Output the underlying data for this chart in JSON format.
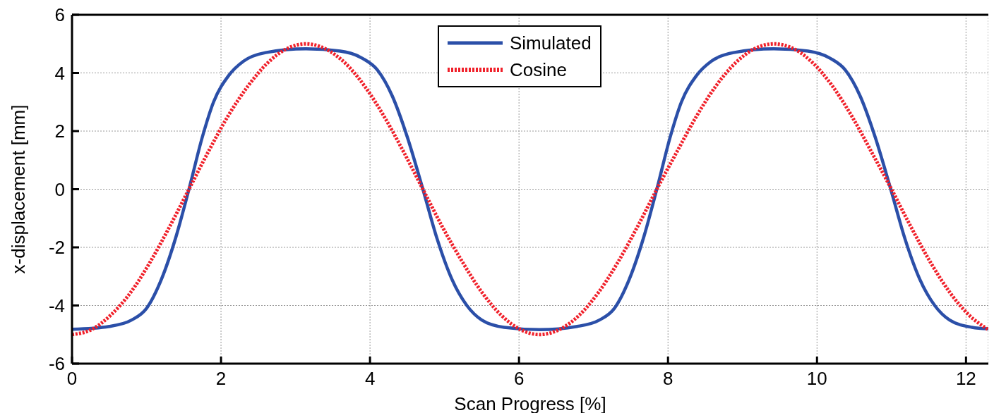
{
  "chart_data": {
    "type": "line",
    "xlabel": "Scan Progress [%]",
    "ylabel": "x-displacement [mm]",
    "xlim": [
      0,
      12.3
    ],
    "ylim": [
      -6,
      6
    ],
    "xticks": [
      0,
      2,
      4,
      6,
      8,
      10,
      12
    ],
    "yticks": [
      -6,
      -4,
      -2,
      0,
      2,
      4,
      6
    ],
    "grid": true,
    "legend": "top",
    "marker": "none",
    "series": [
      {
        "name": "Simulated",
        "color": "#2b4fa8",
        "line_style": "solid",
        "x": [
          0,
          0.5,
          0.8,
          1.0,
          1.2,
          1.4,
          1.57,
          1.75,
          1.9,
          2.1,
          2.3,
          2.6,
          3.14,
          3.6,
          3.9,
          4.1,
          4.3,
          4.5,
          4.71,
          4.9,
          5.1,
          5.3,
          5.5,
          5.8,
          6.28,
          6.78,
          7.08,
          7.28,
          7.48,
          7.68,
          7.85,
          8.03,
          8.18,
          8.38,
          8.58,
          8.88,
          9.42,
          9.88,
          10.18,
          10.38,
          10.58,
          10.78,
          10.99,
          11.18,
          11.38,
          11.58,
          11.78,
          12.08,
          12.3
        ],
        "values": [
          -4.82,
          -4.72,
          -4.5,
          -4.1,
          -3.1,
          -1.6,
          0,
          1.8,
          3.0,
          3.9,
          4.4,
          4.7,
          4.83,
          4.75,
          4.5,
          4.1,
          3.2,
          1.8,
          0,
          -1.7,
          -3.1,
          -4.0,
          -4.5,
          -4.75,
          -4.83,
          -4.72,
          -4.5,
          -4.1,
          -3.1,
          -1.6,
          0,
          1.8,
          3.0,
          3.9,
          4.4,
          4.7,
          4.83,
          4.75,
          4.5,
          4.1,
          3.2,
          1.8,
          0,
          -1.7,
          -3.1,
          -4.0,
          -4.5,
          -4.75,
          -4.8
        ]
      },
      {
        "name": "Cosine",
        "color": "#f0202a",
        "line_style": "dotted",
        "x": [
          0,
          0.26,
          0.52,
          0.79,
          1.05,
          1.31,
          1.57,
          1.83,
          2.09,
          2.36,
          2.62,
          2.88,
          3.14,
          3.4,
          3.67,
          3.93,
          4.19,
          4.45,
          4.71,
          4.97,
          5.24,
          5.5,
          5.76,
          6.02,
          6.28,
          6.54,
          6.81,
          7.07,
          7.33,
          7.59,
          7.85,
          8.12,
          8.38,
          8.64,
          8.9,
          9.16,
          9.42,
          9.69,
          9.95,
          10.21,
          10.47,
          10.73,
          11.0,
          11.26,
          11.52,
          11.78,
          12.04,
          12.3
        ],
        "values": [
          -5,
          -4.83,
          -4.33,
          -3.54,
          -2.5,
          -1.29,
          0,
          1.29,
          2.5,
          3.54,
          4.33,
          4.83,
          5,
          4.83,
          4.33,
          3.54,
          2.5,
          1.29,
          0,
          -1.29,
          -2.5,
          -3.54,
          -4.33,
          -4.83,
          -5,
          -4.83,
          -4.33,
          -3.54,
          -2.5,
          -1.29,
          0,
          1.29,
          2.5,
          3.54,
          4.33,
          4.83,
          5,
          4.83,
          4.33,
          3.54,
          2.5,
          1.29,
          0,
          -1.29,
          -2.5,
          -3.54,
          -4.33,
          -4.83
        ]
      }
    ]
  }
}
